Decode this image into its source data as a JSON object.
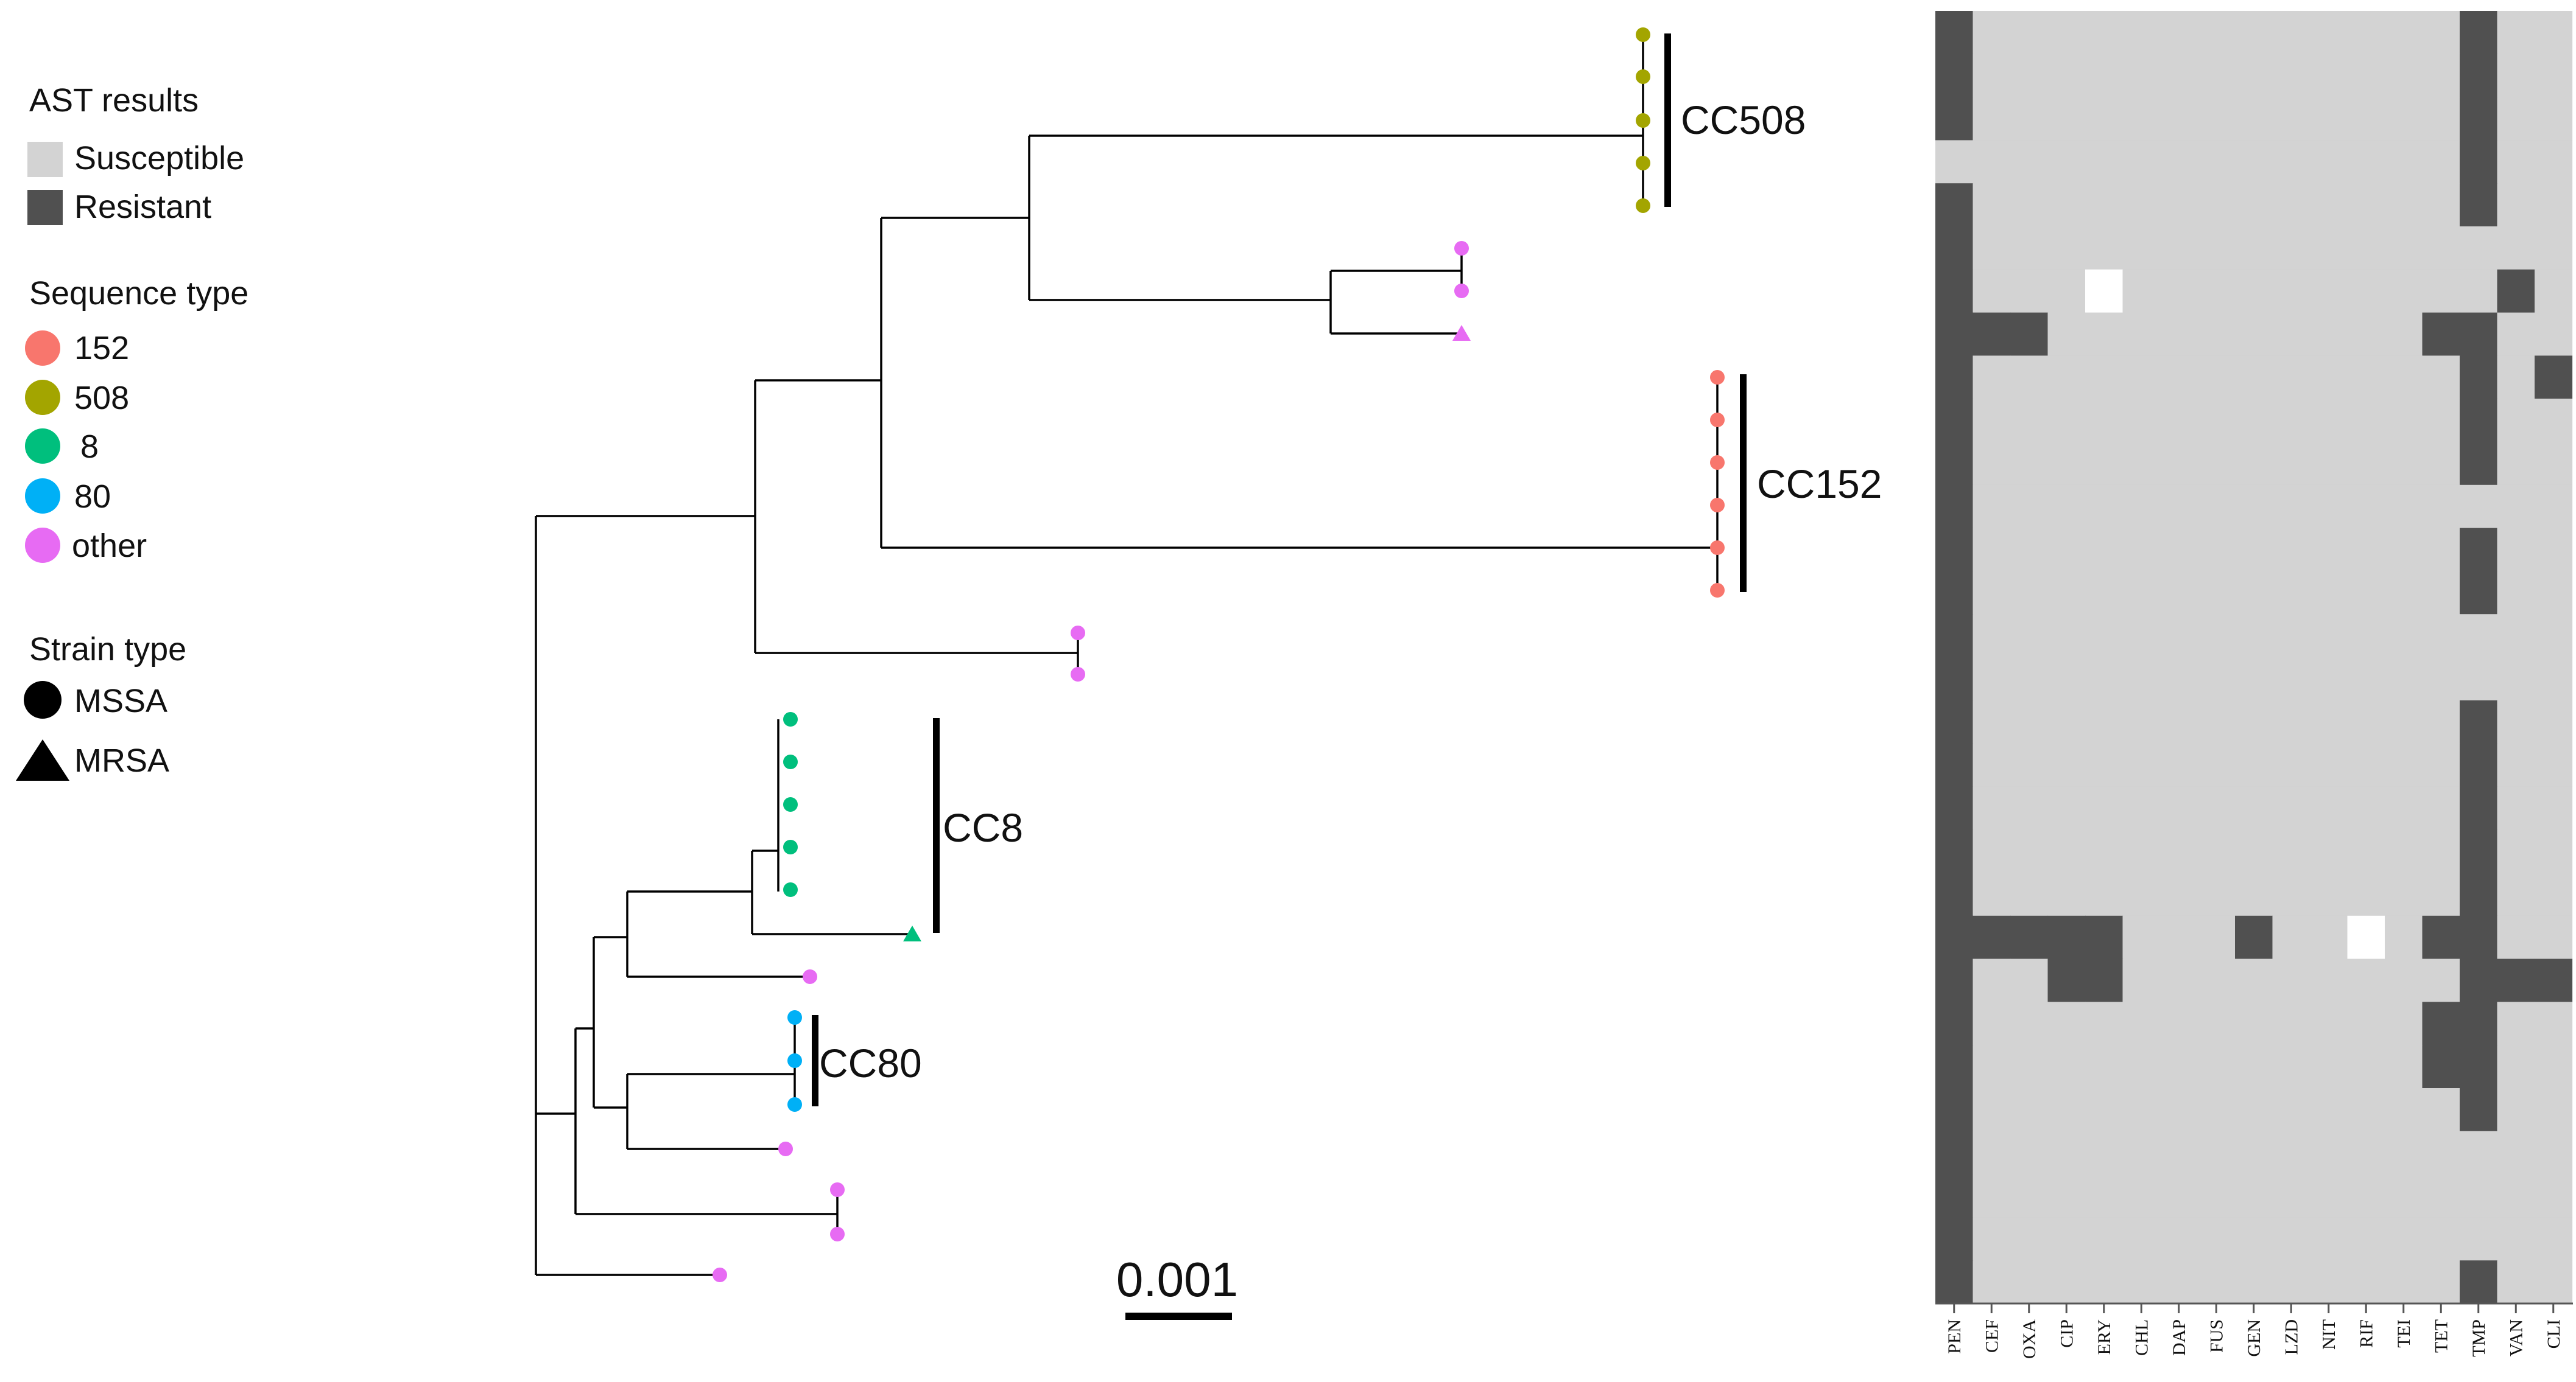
{
  "legend": {
    "ast": {
      "title": "AST results",
      "items": [
        {
          "label": "Susceptible",
          "color": "#d3d3d3"
        },
        {
          "label": "Resistant",
          "color": "#505050"
        }
      ]
    },
    "sequence_type": {
      "title": "Sequence type",
      "items": [
        {
          "label": "152",
          "color": "#f8766d"
        },
        {
          "label": "508",
          "color": "#a3a500"
        },
        {
          "label": "8",
          "color": "#00bf7d"
        },
        {
          "label": "80",
          "color": "#00b0f6"
        },
        {
          "label": "other",
          "color": "#e76bf3"
        }
      ]
    },
    "strain_type": {
      "title": "Strain type",
      "items": [
        {
          "label": "MSSA",
          "shape": "circle"
        },
        {
          "label": "MRSA",
          "shape": "triangle"
        }
      ]
    }
  },
  "clades": [
    {
      "label": "CC508"
    },
    {
      "label": "CC152"
    },
    {
      "label": "CC8"
    },
    {
      "label": "CC80"
    }
  ],
  "scale_bar": {
    "label": "0.001"
  },
  "tips": [
    {
      "st": "508",
      "strain": "MSSA",
      "R": [
        "PEN",
        "TMP"
      ]
    },
    {
      "st": "508",
      "strain": "MSSA",
      "R": [
        "PEN",
        "TMP"
      ]
    },
    {
      "st": "508",
      "strain": "MSSA",
      "R": [
        "PEN",
        "TMP"
      ]
    },
    {
      "st": "508",
      "strain": "MSSA",
      "R": [
        "TMP"
      ]
    },
    {
      "st": "508",
      "strain": "MSSA",
      "R": [
        "PEN",
        "TMP"
      ]
    },
    {
      "st": "other",
      "strain": "MSSA",
      "R": [
        "PEN"
      ]
    },
    {
      "st": "other",
      "strain": "MSSA",
      "R": [
        "PEN",
        "VAN"
      ],
      "U": [
        "ERY"
      ]
    },
    {
      "st": "other",
      "strain": "MRSA",
      "R": [
        "PEN",
        "CEF",
        "OXA",
        "TET",
        "TMP"
      ]
    },
    {
      "st": "152",
      "strain": "MSSA",
      "R": [
        "PEN",
        "TMP",
        "CLI"
      ]
    },
    {
      "st": "152",
      "strain": "MSSA",
      "R": [
        "PEN",
        "TMP"
      ]
    },
    {
      "st": "152",
      "strain": "MSSA",
      "R": [
        "PEN",
        "TMP"
      ]
    },
    {
      "st": "152",
      "strain": "MSSA",
      "R": [
        "PEN"
      ]
    },
    {
      "st": "152",
      "strain": "MSSA",
      "R": [
        "PEN",
        "TMP"
      ]
    },
    {
      "st": "152",
      "strain": "MSSA",
      "R": [
        "PEN",
        "TMP"
      ]
    },
    {
      "st": "other",
      "strain": "MSSA",
      "R": [
        "PEN"
      ]
    },
    {
      "st": "other",
      "strain": "MSSA",
      "R": [
        "PEN"
      ]
    },
    {
      "st": "8",
      "strain": "MSSA",
      "R": [
        "PEN",
        "TMP"
      ]
    },
    {
      "st": "8",
      "strain": "MSSA",
      "R": [
        "PEN",
        "TMP"
      ]
    },
    {
      "st": "8",
      "strain": "MSSA",
      "R": [
        "PEN",
        "TMP"
      ]
    },
    {
      "st": "8",
      "strain": "MSSA",
      "R": [
        "PEN",
        "TMP"
      ]
    },
    {
      "st": "8",
      "strain": "MSSA",
      "R": [
        "PEN",
        "TMP"
      ]
    },
    {
      "st": "8",
      "strain": "MRSA",
      "R": [
        "PEN",
        "CEF",
        "OXA",
        "CIP",
        "ERY",
        "GEN",
        "TET",
        "TMP"
      ],
      "U": [
        "RIF"
      ]
    },
    {
      "st": "other",
      "strain": "MSSA",
      "R": [
        "PEN",
        "CIP",
        "ERY",
        "TMP",
        "VAN",
        "CLI"
      ]
    },
    {
      "st": "80",
      "strain": "MSSA",
      "R": [
        "PEN",
        "TET",
        "TMP"
      ]
    },
    {
      "st": "80",
      "strain": "MSSA",
      "R": [
        "PEN",
        "TET",
        "TMP"
      ]
    },
    {
      "st": "80",
      "strain": "MSSA",
      "R": [
        "PEN",
        "TMP"
      ]
    },
    {
      "st": "other",
      "strain": "MSSA",
      "R": [
        "PEN"
      ]
    },
    {
      "st": "other",
      "strain": "MSSA",
      "R": [
        "PEN"
      ]
    },
    {
      "st": "other",
      "strain": "MSSA",
      "R": [
        "PEN"
      ]
    },
    {
      "st": "other",
      "strain": "MSSA",
      "R": [
        "PEN",
        "TMP"
      ]
    }
  ],
  "heatmap": {
    "columns": [
      "PEN",
      "CEF",
      "OXA",
      "CIP",
      "ERY",
      "CHL",
      "DAP",
      "FUS",
      "GEN",
      "LZD",
      "NIT",
      "RIF",
      "TEI",
      "TET",
      "TMP",
      "VAN",
      "CLI"
    ],
    "colors": {
      "resistant": "#505050",
      "susceptible": "#d3d3d3",
      "unknown": "#ffffff"
    }
  }
}
